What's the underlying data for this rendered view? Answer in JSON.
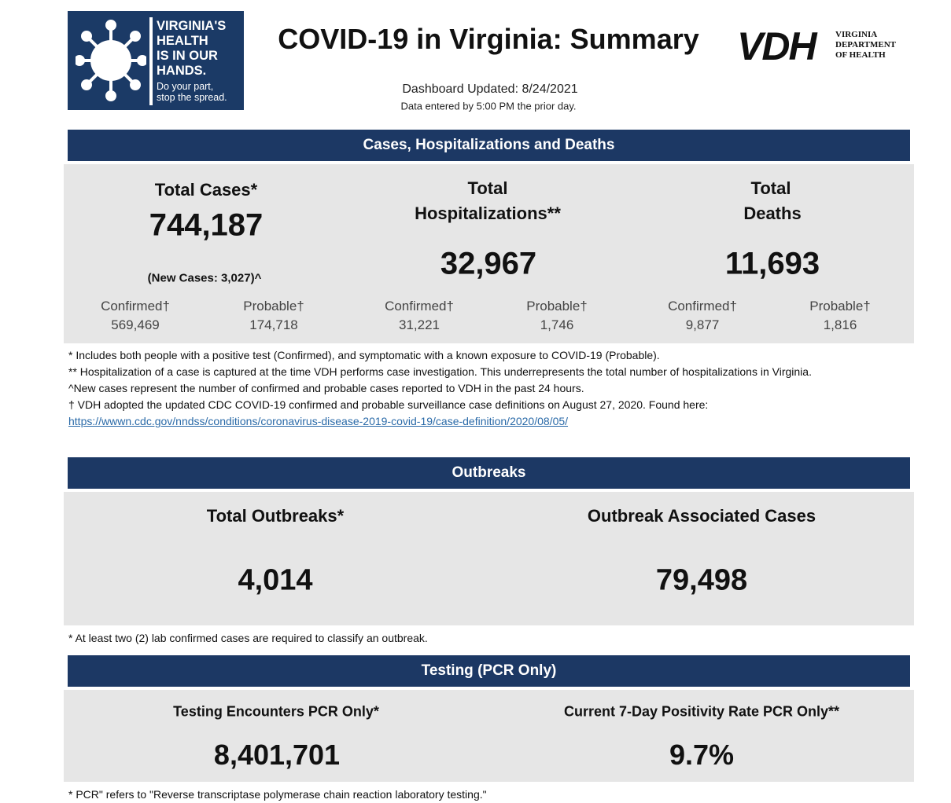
{
  "header": {
    "logo_lines": [
      "VIRGINIA'S",
      "HEALTH",
      "IS IN OUR",
      "HANDS."
    ],
    "logo_tagline": [
      "Do your part,",
      "stop the spread."
    ],
    "title": "COVID-19 in Virginia: Summary",
    "vdh": "VDH",
    "vdh_lines": [
      "VIRGINIA",
      "DEPARTMENT",
      "OF HEALTH"
    ],
    "updated": "Dashboard Updated: 8/24/2021",
    "note": "Data entered by 5:00 PM the prior day."
  },
  "sections": [
    {
      "title": "Cases, Hospitalizations and Deaths",
      "metrics": [
        {
          "label": [
            "Total Cases*"
          ],
          "value": "744,187",
          "sub": "(New Cases: 3,027)^",
          "breakdown": [
            {
              "label": "Confirmed†",
              "value": "569,469"
            },
            {
              "label": "Probable†",
              "value": "174,718"
            }
          ]
        },
        {
          "label": [
            "Total",
            "Hospitalizations**"
          ],
          "value": "32,967",
          "breakdown": [
            {
              "label": "Confirmed†",
              "value": "31,221"
            },
            {
              "label": "Probable†",
              "value": "1,746"
            }
          ]
        },
        {
          "label": [
            "Total",
            "Deaths"
          ],
          "value": "11,693",
          "breakdown": [
            {
              "label": "Confirmed†",
              "value": "9,877"
            },
            {
              "label": "Probable†",
              "value": "1,816"
            }
          ]
        }
      ],
      "footnotes": [
        "* Includes both people with a positive test (Confirmed), and symptomatic with a known exposure to COVID-19 (Probable).",
        "** Hospitalization of a case is captured at the time VDH performs case investigation. This underrepresents the total number of hospitalizations in Virginia.",
        "^New cases represent the number of confirmed and probable cases reported to VDH in the past 24 hours.",
        "† VDH adopted the updated CDC COVID-19 confirmed and probable surveillance case definitions on August 27, 2020. Found here: "
      ],
      "link": "https://wwwn.cdc.gov/nndss/conditions/coronavirus-disease-2019-covid-19/case-definition/2020/08/05/"
    },
    {
      "title": "Outbreaks",
      "metrics": [
        {
          "label": [
            "Total Outbreaks*"
          ],
          "value": "4,014"
        },
        {
          "label": [
            "Outbreak Associated Cases"
          ],
          "value": "79,498"
        }
      ],
      "footnotes": [
        "* At least two (2) lab confirmed cases are required to classify an outbreak."
      ]
    },
    {
      "title": "Testing (PCR Only)",
      "metrics": [
        {
          "label": [
            "Testing Encounters PCR Only*"
          ],
          "value": "8,401,701"
        },
        {
          "label": [
            "Current 7-Day Positivity Rate PCR Only**"
          ],
          "value": "9.7%"
        }
      ],
      "footnotes": [
        "* PCR\" refers to \"Reverse transcriptase polymerase chain reaction laboratory testing.\""
      ]
    }
  ]
}
